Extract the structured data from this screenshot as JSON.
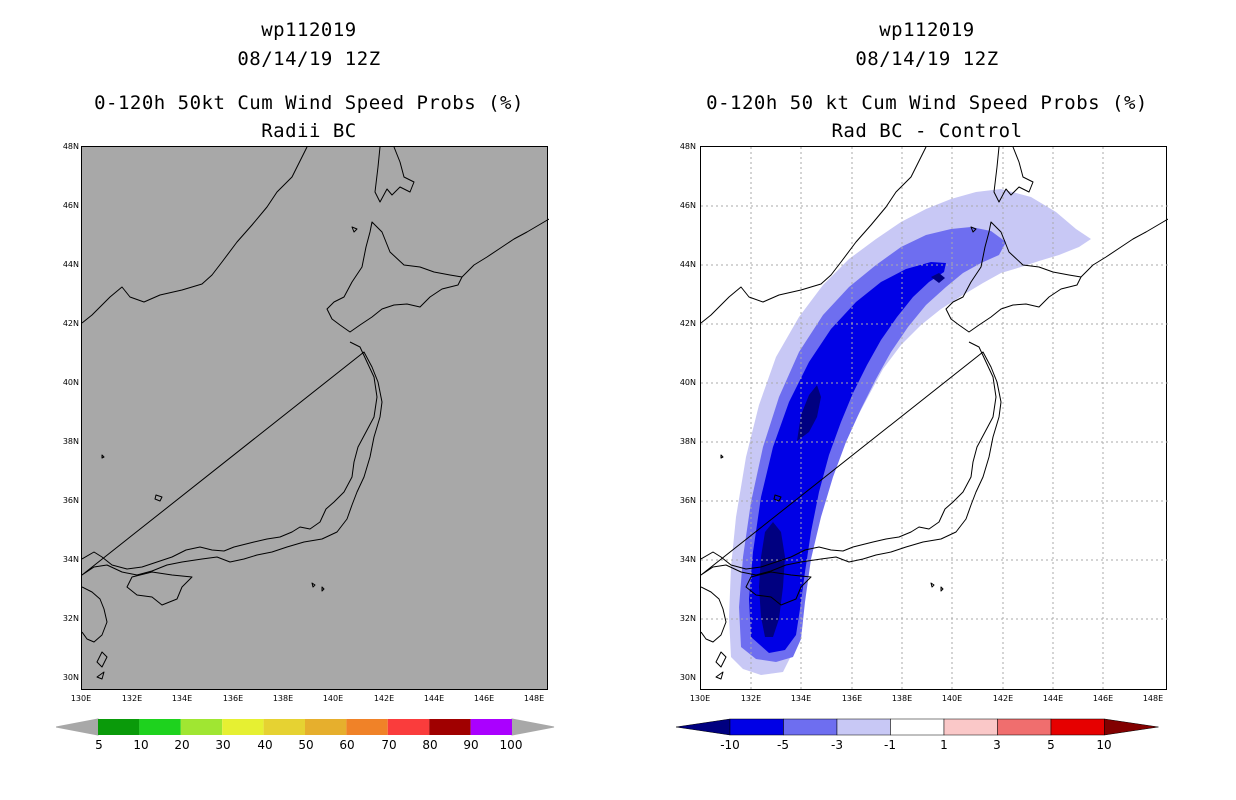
{
  "left_panel": {
    "title_id": "wp112019",
    "title_date": "08/14/19 12Z",
    "title_product": "0-120h 50kt Cum Wind Speed Probs (%)",
    "title_sub": "Radii BC",
    "lat_labels": [
      "48N",
      "46N",
      "44N",
      "42N",
      "40N",
      "38N",
      "36N",
      "34N",
      "32N",
      "30N"
    ],
    "lon_labels": [
      "130E",
      "132E",
      "134E",
      "136E",
      "138E",
      "140E",
      "142E",
      "144E",
      "146E",
      "148E"
    ],
    "colorbar": {
      "labels": [
        "5",
        "10",
        "20",
        "30",
        "40",
        "50",
        "60",
        "70",
        "80",
        "90",
        "100"
      ],
      "colors": [
        "#0a9a0a",
        "#1ed21e",
        "#a0e632",
        "#e6f032",
        "#e6d232",
        "#e6af2d",
        "#f08228",
        "#fa3c3c",
        "#a00000",
        "#aa00ff"
      ]
    }
  },
  "right_panel": {
    "title_id": "wp112019",
    "title_date": "08/14/19 12Z",
    "title_product": "0-120h 50 kt Cum Wind Speed Probs (%)",
    "title_sub": "Rad BC - Control",
    "lat_labels": [
      "48N",
      "46N",
      "44N",
      "42N",
      "40N",
      "38N",
      "36N",
      "34N",
      "32N",
      "30N"
    ],
    "lon_labels": [
      "130E",
      "132E",
      "134E",
      "136E",
      "138E",
      "140E",
      "142E",
      "144E",
      "146E",
      "148E"
    ],
    "colorbar": {
      "labels": [
        "-10",
        "-5",
        "-3",
        "-1",
        "1",
        "3",
        "5",
        "10"
      ],
      "colors": [
        "#000080",
        "#0000e6",
        "#6e6ef0",
        "#c8c8f5",
        "#ffffff",
        "#fac8c8",
        "#f06e6e",
        "#e60000",
        "#820000"
      ]
    }
  }
}
